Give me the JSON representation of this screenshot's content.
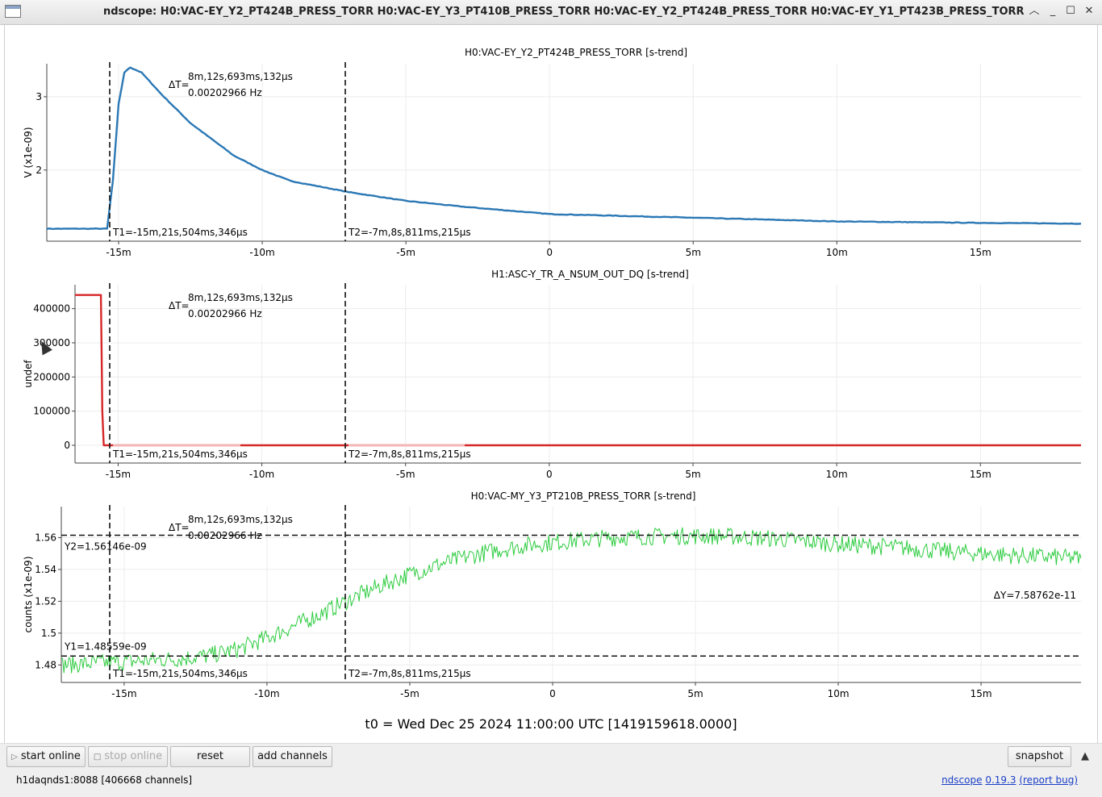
{
  "window": {
    "title": "ndscope: H0:VAC-EY_Y2_PT424B_PRESS_TORR H0:VAC-EY_Y3_PT410B_PRESS_TORR H0:VAC-EY_Y2_PT424B_PRESS_TORR H0:VAC-EY_Y1_PT423B_PRESS_TORR",
    "controls": [
      "chevron-up-icon",
      "minimize-icon",
      "maximize-icon",
      "close-icon"
    ]
  },
  "cursors": {
    "t1_label": "T1=-15m,21s,504ms,346µs",
    "t2_label": "T2=-7m,8s,811ms,215µs",
    "delta_t": "ΔT=",
    "delta_t_value": "8m,12s,693ms,132µs",
    "delta_f": "0.00202966 Hz",
    "y1_label": "Y1=1.48559e-09",
    "y2_label": "Y2=1.56146e-09",
    "delta_y": "ΔY=7.58762e-11"
  },
  "chart_data": [
    {
      "type": "line",
      "title": "H0:VAC-EY_Y2_PT424B_PRESS_TORR [s-trend]",
      "ylabel": "V (x1e-09)",
      "x_unit": "minutes relative to t0",
      "xlim": [
        -17.5,
        18.5
      ],
      "ylim": [
        1.03,
        3.45
      ],
      "y_ticks": [
        {
          "v": 2,
          "label": "2"
        },
        {
          "v": 3,
          "label": "3"
        }
      ],
      "x_ticks": [
        {
          "v": -15,
          "label": "-15m"
        },
        {
          "v": -10,
          "label": "-10m"
        },
        {
          "v": -5,
          "label": "-5m"
        },
        {
          "v": 0,
          "label": "0"
        },
        {
          "v": 5,
          "label": "5m"
        },
        {
          "v": 10,
          "label": "10m"
        },
        {
          "v": 15,
          "label": "15m"
        }
      ],
      "color": "#2b78b5",
      "series": [
        {
          "x": [
            -17.5,
            -15.4,
            -15.2,
            -15.0,
            -14.8,
            -14.6,
            -14.2,
            -13.5,
            -12.5,
            -11,
            -10,
            -9,
            -7,
            -5,
            -3,
            0,
            5,
            10,
            15,
            18.5
          ],
          "values": [
            1.2,
            1.2,
            1.85,
            2.9,
            3.33,
            3.4,
            3.33,
            3.03,
            2.64,
            2.2,
            2.0,
            1.85,
            1.7,
            1.58,
            1.5,
            1.4,
            1.35,
            1.3,
            1.28,
            1.27
          ]
        }
      ]
    },
    {
      "type": "line",
      "title": "H1:ASC-Y_TR_A_NSUM_OUT_DQ [s-trend]",
      "ylabel": "undef",
      "xlim": [
        -16.5,
        18.5
      ],
      "ylim": [
        -52000,
        470000
      ],
      "y_ticks": [
        {
          "v": 0,
          "label": "0"
        },
        {
          "v": 100000,
          "label": "100000"
        },
        {
          "v": 200000,
          "label": "200000"
        },
        {
          "v": 300000,
          "label": "300000"
        },
        {
          "v": 400000,
          "label": "400000"
        }
      ],
      "x_ticks": [
        {
          "v": -15,
          "label": "-15m"
        },
        {
          "v": -10,
          "label": "-10m"
        },
        {
          "v": -5,
          "label": "-5m"
        },
        {
          "v": 0,
          "label": "0"
        },
        {
          "v": 5,
          "label": "5m"
        },
        {
          "v": 10,
          "label": "10m"
        },
        {
          "v": 15,
          "label": "15m"
        }
      ],
      "color": "#d62728",
      "series": [
        {
          "x": [
            -16.5,
            -15.6,
            -15.6,
            -15.55,
            -15.5,
            -15.4,
            18.5
          ],
          "values": [
            440000,
            440000,
            430000,
            100000,
            0,
            0,
            0
          ]
        }
      ]
    },
    {
      "type": "line",
      "title": "H0:VAC-MY_Y3_PT210B_PRESS_TORR [s-trend]",
      "ylabel": "counts (x1e-09)",
      "xlim": [
        -17.2,
        18.5
      ],
      "ylim": [
        1.469,
        1.5795
      ],
      "y_ticks": [
        {
          "v": 1.48,
          "label": "1.48"
        },
        {
          "v": 1.5,
          "label": "1.5"
        },
        {
          "v": 1.52,
          "label": "1.52"
        },
        {
          "v": 1.54,
          "label": "1.54"
        },
        {
          "v": 1.56,
          "label": "1.56"
        }
      ],
      "x_ticks": [
        {
          "v": -15,
          "label": "-15m"
        },
        {
          "v": -10,
          "label": "-10m"
        },
        {
          "v": -5,
          "label": "-5m"
        },
        {
          "v": 0,
          "label": "0"
        },
        {
          "v": 5,
          "label": "5m"
        },
        {
          "v": 10,
          "label": "10m"
        },
        {
          "v": 15,
          "label": "15m"
        }
      ],
      "color": "#2ecc40",
      "series": [
        {
          "x": [
            -17.2,
            -15,
            -13,
            -12,
            -11,
            -10,
            -9,
            -8,
            -7,
            -6,
            -5,
            -4,
            -3,
            -2,
            -1,
            0,
            2,
            4,
            6,
            8,
            10,
            12,
            14,
            16,
            18.5
          ],
          "values": [
            1.48,
            1.482,
            1.484,
            1.486,
            1.49,
            1.497,
            1.505,
            1.513,
            1.522,
            1.53,
            1.537,
            1.543,
            1.548,
            1.552,
            1.555,
            1.557,
            1.56,
            1.561,
            1.561,
            1.559,
            1.556,
            1.554,
            1.551,
            1.549,
            1.547
          ]
        }
      ]
    }
  ],
  "time_origin": "t0 = Wed Dec 25 2024 11:00:00 UTC [1419159618.0000]",
  "toolbar": {
    "start_online": "start online",
    "stop_online": "stop online",
    "reset": "reset",
    "add_channels": "add channels",
    "snapshot": "snapshot"
  },
  "status": {
    "server": "h1daqnds1:8088  [406668 channels]",
    "app_name": "ndscope",
    "version": "0.19.3",
    "report_bug": "(report bug)"
  }
}
